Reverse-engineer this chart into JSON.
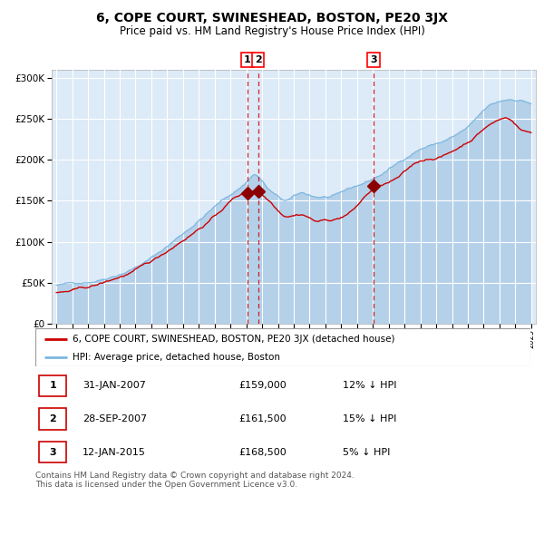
{
  "title": "6, COPE COURT, SWINESHEAD, BOSTON, PE20 3JX",
  "subtitle": "Price paid vs. HM Land Registry's House Price Index (HPI)",
  "title_fontsize": 10,
  "subtitle_fontsize": 8.5,
  "background_color": "#ffffff",
  "plot_bg_color": "#ddeaf7",
  "grid_color": "#ffffff",
  "hpi_line_color": "#7db8e0",
  "hpi_fill_color": "#aecde8",
  "price_line_color": "#cc0000",
  "vline_color": "#cc0000",
  "marker_color": "#8b0000",
  "ylim": [
    0,
    310000
  ],
  "ylabel_ticks": [
    0,
    50000,
    100000,
    150000,
    200000,
    250000,
    300000
  ],
  "ylabel_labels": [
    "£0",
    "£50K",
    "£100K",
    "£150K",
    "£200K",
    "£250K",
    "£300K"
  ],
  "start_year": 1995,
  "end_year": 2025,
  "trans_years": [
    2007.08,
    2007.75,
    2015.04
  ],
  "trans_prices": [
    159000,
    161500,
    168500
  ],
  "trans_labels": [
    "1",
    "2",
    "3"
  ],
  "legend_entries": [
    {
      "label": "6, COPE COURT, SWINESHEAD, BOSTON, PE20 3JX (detached house)",
      "color": "#cc0000"
    },
    {
      "label": "HPI: Average price, detached house, Boston",
      "color": "#7db8e0"
    }
  ],
  "table_rows": [
    {
      "num": "1",
      "date": "31-JAN-2007",
      "price": "£159,000",
      "hpi": "12% ↓ HPI"
    },
    {
      "num": "2",
      "date": "28-SEP-2007",
      "price": "£161,500",
      "hpi": "15% ↓ HPI"
    },
    {
      "num": "3",
      "date": "12-JAN-2015",
      "price": "£168,500",
      "hpi": "5% ↓ HPI"
    }
  ],
  "footer": "Contains HM Land Registry data © Crown copyright and database right 2024.\nThis data is licensed under the Open Government Licence v3.0."
}
